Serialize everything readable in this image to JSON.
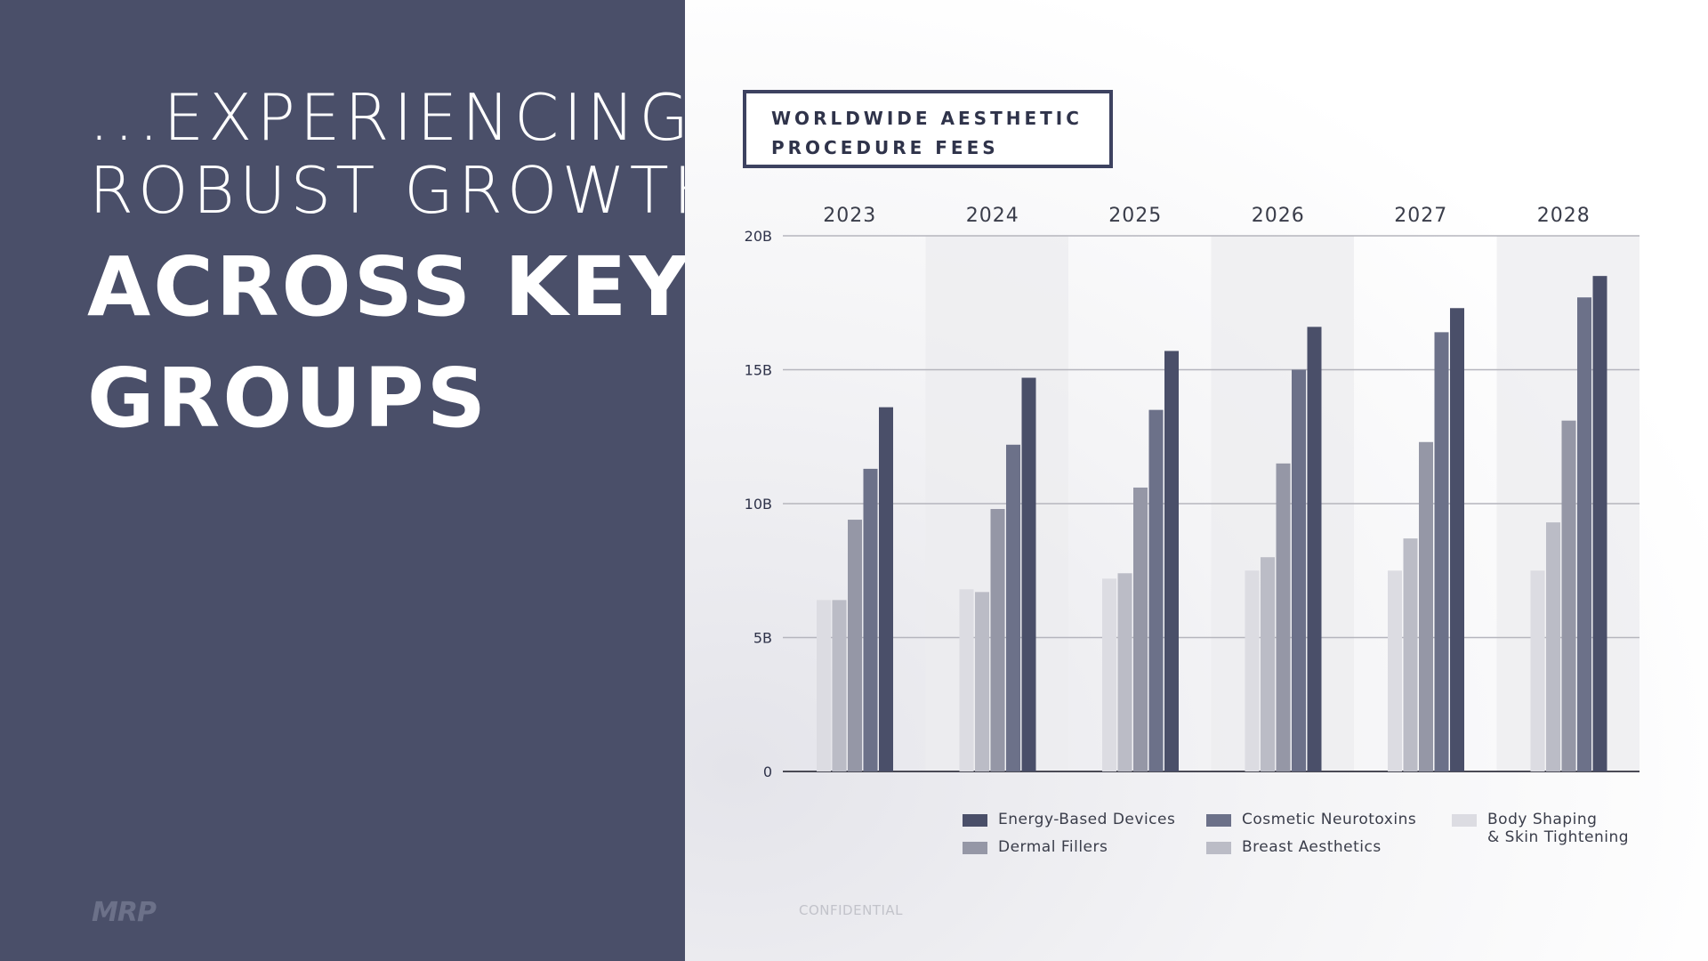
{
  "headline": {
    "line1": "...EXPERIENCING",
    "line2": "ROBUST GROWTH",
    "line3": "ACROSS KEY",
    "line4": "GROUPS"
  },
  "logo": "MRP",
  "footer": {
    "confidential": "CONFIDENTIAL"
  },
  "colors": {
    "panel": "#4a4f69",
    "energy": "#4a4f69",
    "neurotoxins": "#6c7189",
    "fillers": "#9597a6",
    "breast": "#bbbcc6",
    "body": "#dcdce2"
  },
  "chart_data": {
    "type": "bar",
    "title": "WORLDWIDE AESTHETIC PROCEDURE FEES",
    "categories": [
      "2023",
      "2024",
      "2025",
      "2026",
      "2027",
      "2028"
    ],
    "yticks": [
      "0",
      "5B",
      "10B",
      "15B",
      "20B"
    ],
    "ylim": [
      0,
      20
    ],
    "grid": true,
    "legend_position": "bottom",
    "series": [
      {
        "name": "Body Shaping & Skin Tightening",
        "label_lines": [
          "Body Shaping",
          "& Skin Tightening"
        ],
        "values": [
          6.4,
          6.8,
          7.2,
          7.5,
          7.5,
          7.5
        ]
      },
      {
        "name": "Breast Aesthetics",
        "values": [
          6.4,
          6.7,
          7.4,
          8.0,
          8.7,
          9.3
        ]
      },
      {
        "name": "Dermal Fillers",
        "values": [
          9.4,
          9.8,
          10.6,
          11.5,
          12.3,
          13.1
        ]
      },
      {
        "name": "Cosmetic Neurotoxins",
        "values": [
          11.3,
          12.2,
          13.5,
          15.0,
          16.4,
          17.7
        ]
      },
      {
        "name": "Energy-Based Devices",
        "values": [
          13.6,
          14.7,
          15.7,
          16.6,
          17.3,
          18.5
        ]
      }
    ]
  }
}
